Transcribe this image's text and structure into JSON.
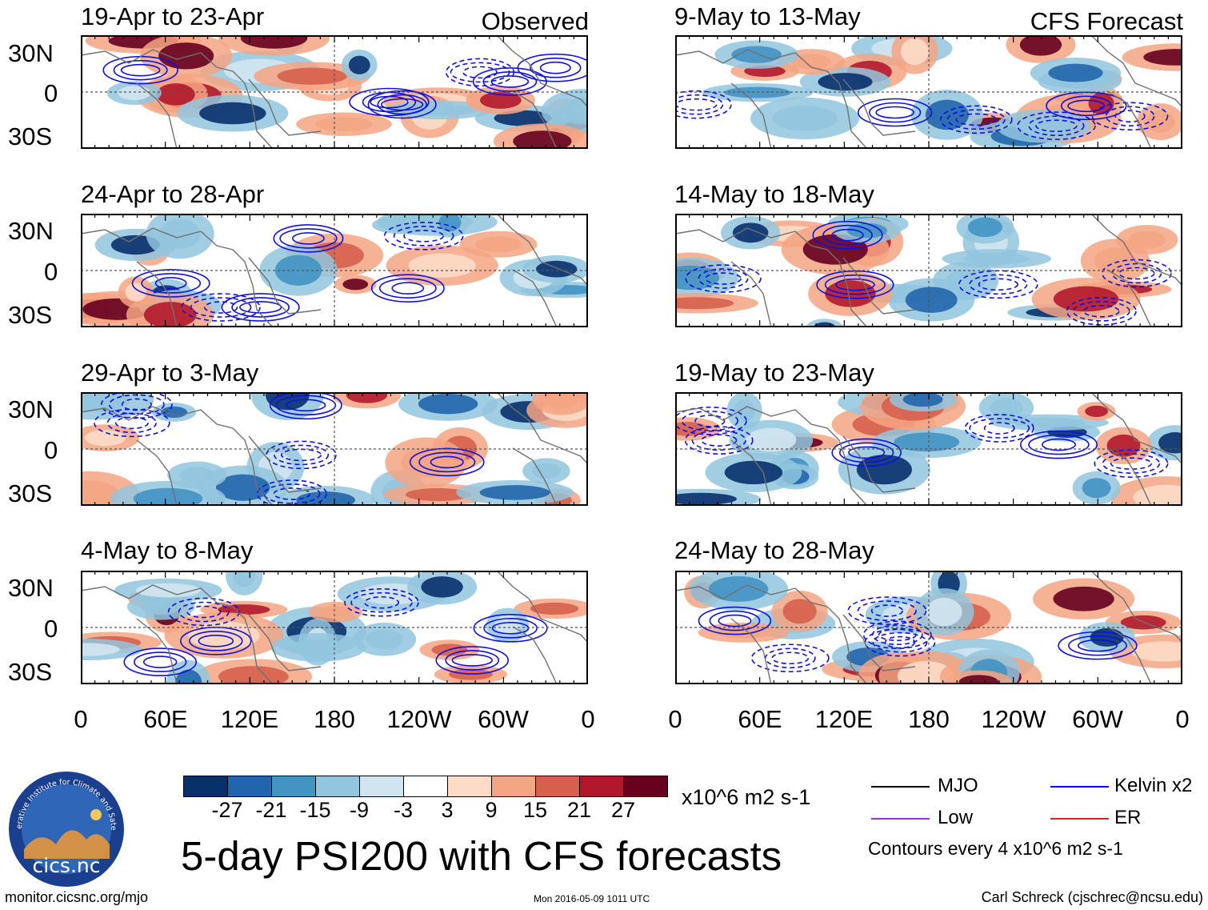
{
  "chart_data": {
    "type": "heatmap",
    "title": "5-day PSI200 with CFS forecasts",
    "variable": "PSI200",
    "units": "x10^6 m2 s-1",
    "columns": [
      {
        "label": "Observed",
        "panels": [
          {
            "title": "19-Apr to 23-Apr"
          },
          {
            "title": "24-Apr to 28-Apr"
          },
          {
            "title": "29-Apr to 3-May"
          },
          {
            "title": "4-May to 8-May"
          }
        ]
      },
      {
        "label": "CFS Forecast",
        "panels": [
          {
            "title": "9-May to 13-May"
          },
          {
            "title": "14-May to 18-May"
          },
          {
            "title": "19-May to 23-May"
          },
          {
            "title": "24-May to 28-May"
          }
        ]
      }
    ],
    "x_ticks": [
      "0",
      "60E",
      "120E",
      "180",
      "120W",
      "60W",
      "0"
    ],
    "y_ticks": [
      "30N",
      "0",
      "30S"
    ],
    "colorbar": {
      "colors": [
        "#08306b",
        "#2166ac",
        "#4393c3",
        "#92c5de",
        "#d1e5f0",
        "#ffffff",
        "#fddbc7",
        "#f4a582",
        "#d6604d",
        "#b2182b",
        "#67001f"
      ],
      "labels": [
        "-27",
        "-21",
        "-15",
        "-9",
        "-3",
        "3",
        "9",
        "15",
        "21",
        "27"
      ],
      "units": "x10^6 m2 s-1"
    },
    "contour_legend": [
      {
        "name": "MJO",
        "color": "#000000"
      },
      {
        "name": "Kelvin x2",
        "color": "#0000ff"
      },
      {
        "name": "Low",
        "color": "#9933cc"
      },
      {
        "name": "ER",
        "color": "#dd2222"
      }
    ],
    "contour_note": "Contours every 4 x10^6 m2 s-1"
  },
  "footer": {
    "website": "monitor.cicsnc.org/mjo",
    "timestamp": "Mon 2016-05-09 1011 UTC",
    "author": "Carl Schreck (cjschrec@ncsu.edu)"
  },
  "logo": {
    "name": "cics.nc",
    "ring_text": "Cooperative Institute for Climate and Satellites"
  }
}
